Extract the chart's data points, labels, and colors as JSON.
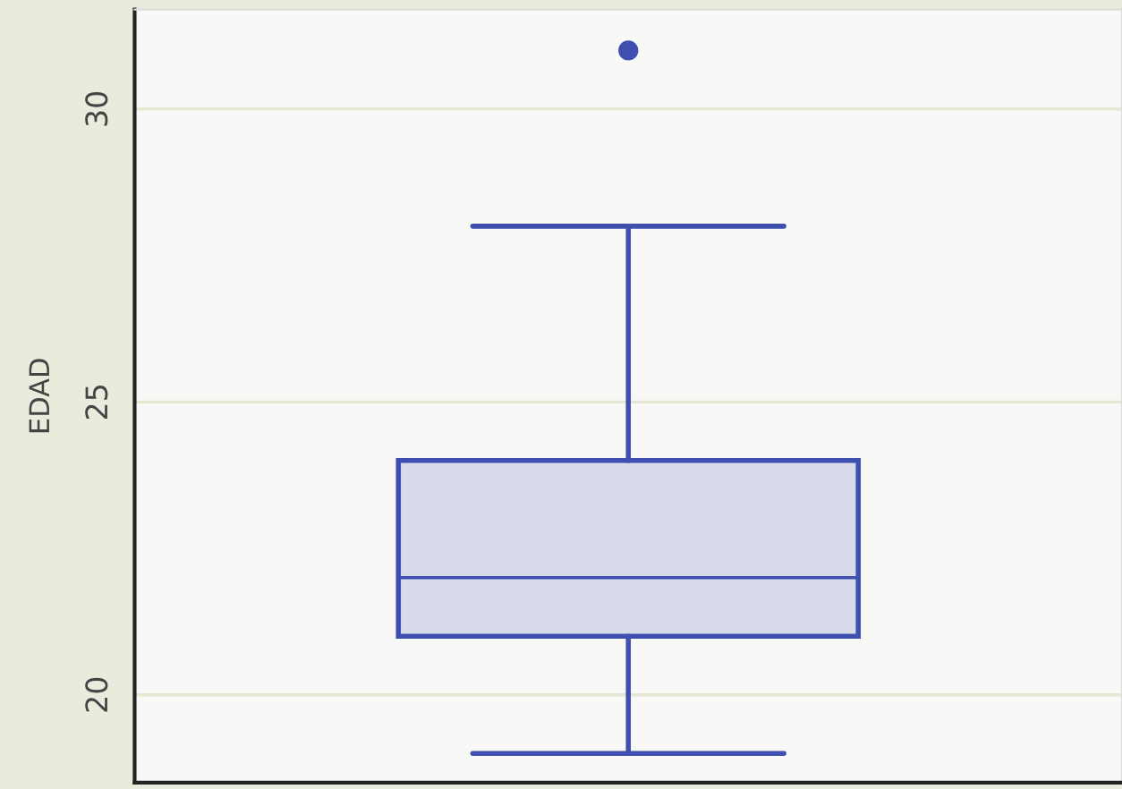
{
  "chart_data": {
    "type": "box",
    "categories": [
      null
    ],
    "boxes": [
      {
        "low": 19,
        "q1": 21,
        "median": 22,
        "q3": 24,
        "high": 28,
        "outliers": [
          31
        ]
      }
    ],
    "color": "#3e4fb0",
    "ylabel": "EDAD",
    "ylim": [
      18.5,
      31.7
    ],
    "yticks": [
      20,
      25,
      30
    ],
    "grid": "y",
    "tick_labels": "y"
  }
}
